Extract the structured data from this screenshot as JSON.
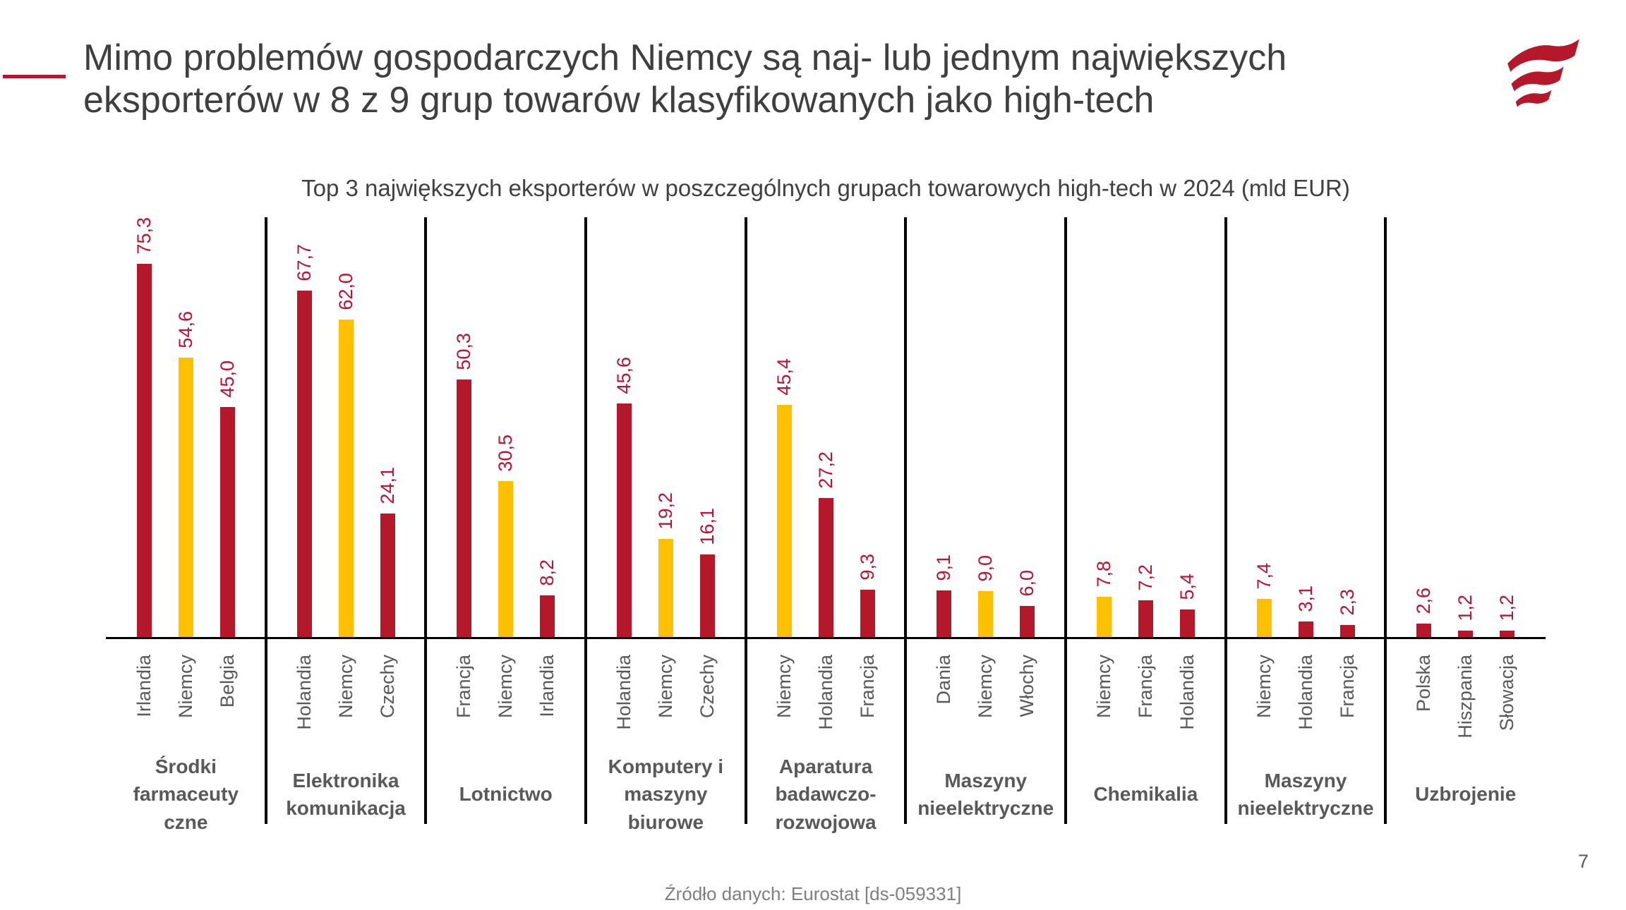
{
  "slide": {
    "title_lines": [
      "Mimo problemów gospodarczych Niemcy są naj- lub jednym największych",
      "eksporterów w 8 z 9 grup towarów klasyfikowanych jako high-tech"
    ],
    "source": "Źródło danych: Eurostat [ds-059331]",
    "page_number": "7",
    "brand_red": "#b5182b"
  },
  "chart_data": {
    "type": "bar",
    "title": "Top 3 największych eksporterów w poszczególnych grupach towarowych high-tech w 2024 (mld EUR)",
    "unit": "mld EUR",
    "axis": {
      "y_visible": false,
      "gridlines": false,
      "ylim": [
        0,
        82
      ],
      "value_labels_rotated": true,
      "category_labels_rotated": true
    },
    "legend": "none",
    "colors": {
      "default_bar": "#b5182b",
      "germany_bar": "#ffc000",
      "value_label": "#bf1132",
      "axis_line": "#000000",
      "separator_line": "#000000"
    },
    "groups": [
      {
        "name": "Środki farmaceutyczne",
        "name_lines": [
          "Środki",
          "farmaceuty",
          "czne"
        ],
        "bars": [
          {
            "country": "Irlandia",
            "value": 75.3,
            "label": "75,3",
            "color": "default_bar"
          },
          {
            "country": "Niemcy",
            "value": 54.6,
            "label": "54,6",
            "color": "germany_bar"
          },
          {
            "country": "Belgia",
            "value": 45.0,
            "label": "45,0",
            "color": "default_bar"
          }
        ]
      },
      {
        "name": "Elektronika komunikacja",
        "name_lines": [
          "Elektronika",
          "komunikacja"
        ],
        "bars": [
          {
            "country": "Holandia",
            "value": 67.7,
            "label": "67,7",
            "color": "default_bar"
          },
          {
            "country": "Niemcy",
            "value": 62.0,
            "label": "62,0",
            "color": "germany_bar"
          },
          {
            "country": "Czechy",
            "value": 24.1,
            "label": "24,1",
            "color": "default_bar"
          }
        ]
      },
      {
        "name": "Lotnictwo",
        "name_lines": [
          "Lotnictwo"
        ],
        "bars": [
          {
            "country": "Francja",
            "value": 50.3,
            "label": "50,3",
            "color": "default_bar"
          },
          {
            "country": "Niemcy",
            "value": 30.5,
            "label": "30,5",
            "color": "germany_bar"
          },
          {
            "country": "Irlandia",
            "value": 8.2,
            "label": "8,2",
            "color": "default_bar"
          }
        ]
      },
      {
        "name": "Komputery i maszyny biurowe",
        "name_lines": [
          "Komputery i",
          "maszyny",
          "biurowe"
        ],
        "bars": [
          {
            "country": "Holandia",
            "value": 45.6,
            "label": "45,6",
            "color": "default_bar"
          },
          {
            "country": "Niemcy",
            "value": 19.2,
            "label": "19,2",
            "color": "germany_bar"
          },
          {
            "country": "Czechy",
            "value": 16.1,
            "label": "16,1",
            "color": "default_bar"
          }
        ]
      },
      {
        "name": "Aparatura badawczo-rozwojowa",
        "name_lines": [
          "Aparatura",
          "badawczo-",
          "rozwojowa"
        ],
        "bars": [
          {
            "country": "Niemcy",
            "value": 45.4,
            "label": "45,4",
            "color": "germany_bar"
          },
          {
            "country": "Holandia",
            "value": 27.2,
            "label": "27,2",
            "color": "default_bar"
          },
          {
            "country": "Francja",
            "value": 9.3,
            "label": "9,3",
            "color": "default_bar"
          }
        ]
      },
      {
        "name": "Maszyny nieelektryczne",
        "name_lines": [
          "Maszyny",
          "nieelektryczne"
        ],
        "bars": [
          {
            "country": "Dania",
            "value": 9.1,
            "label": "9,1",
            "color": "default_bar"
          },
          {
            "country": "Niemcy",
            "value": 9.0,
            "label": "9,0",
            "color": "germany_bar"
          },
          {
            "country": "Włochy",
            "value": 6.0,
            "label": "6,0",
            "color": "default_bar"
          }
        ]
      },
      {
        "name": "Chemikalia",
        "name_lines": [
          "Chemikalia"
        ],
        "bars": [
          {
            "country": "Niemcy",
            "value": 7.8,
            "label": "7,8",
            "color": "germany_bar"
          },
          {
            "country": "Francja",
            "value": 7.2,
            "label": "7,2",
            "color": "default_bar"
          },
          {
            "country": "Holandia",
            "value": 5.4,
            "label": "5,4",
            "color": "default_bar"
          }
        ]
      },
      {
        "name": "Maszyny nieelektryczne",
        "name_lines": [
          "Maszyny",
          "nieelektryczne"
        ],
        "bars": [
          {
            "country": "Niemcy",
            "value": 7.4,
            "label": "7,4",
            "color": "germany_bar"
          },
          {
            "country": "Holandia",
            "value": 3.1,
            "label": "3,1",
            "color": "default_bar"
          },
          {
            "country": "Francja",
            "value": 2.3,
            "label": "2,3",
            "color": "default_bar"
          }
        ]
      },
      {
        "name": "Uzbrojenie",
        "name_lines": [
          "Uzbrojenie"
        ],
        "bars": [
          {
            "country": "Polska",
            "value": 2.6,
            "label": "2,6",
            "color": "default_bar"
          },
          {
            "country": "Hiszpania",
            "value": 1.2,
            "label": "1,2",
            "color": "default_bar"
          },
          {
            "country": "Słowacja",
            "value": 1.2,
            "label": "1,2",
            "color": "default_bar"
          }
        ]
      }
    ]
  }
}
